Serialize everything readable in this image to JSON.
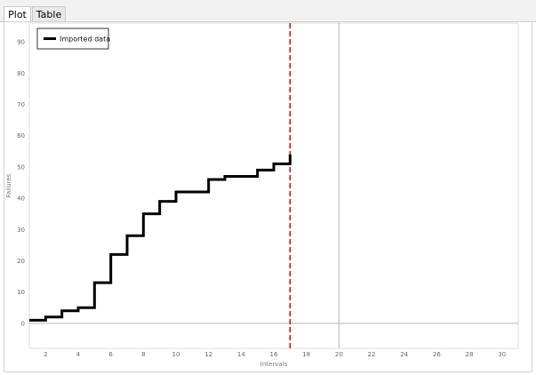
{
  "tabs": [
    {
      "label": "Plot",
      "active": true
    },
    {
      "label": "Table",
      "active": false
    }
  ],
  "chart_data": {
    "type": "line",
    "step": true,
    "xlabel": "Intervals",
    "ylabel": "Failures",
    "xlim": [
      1,
      31
    ],
    "ylim": [
      -8,
      96
    ],
    "x_ticks": [
      2,
      4,
      6,
      8,
      10,
      12,
      14,
      16,
      18,
      20,
      22,
      24,
      26,
      28,
      30
    ],
    "y_ticks": [
      0,
      10,
      20,
      30,
      40,
      50,
      60,
      70,
      80,
      90
    ],
    "grid": true,
    "legend_position": "top-left",
    "series": [
      {
        "name": "Imported data",
        "color": "#000000",
        "x": [
          1,
          2,
          3,
          4,
          5,
          6,
          7,
          8,
          9,
          10,
          11,
          12,
          13,
          14,
          15,
          16,
          17
        ],
        "y": [
          1,
          2,
          4,
          5,
          13,
          22,
          28,
          35,
          39,
          42,
          42,
          46,
          47,
          47,
          49,
          51,
          54
        ]
      }
    ],
    "vertical_marker": {
      "x": 17,
      "color": "#cc0000",
      "style": "dashed"
    },
    "reference_line_x": 20
  }
}
